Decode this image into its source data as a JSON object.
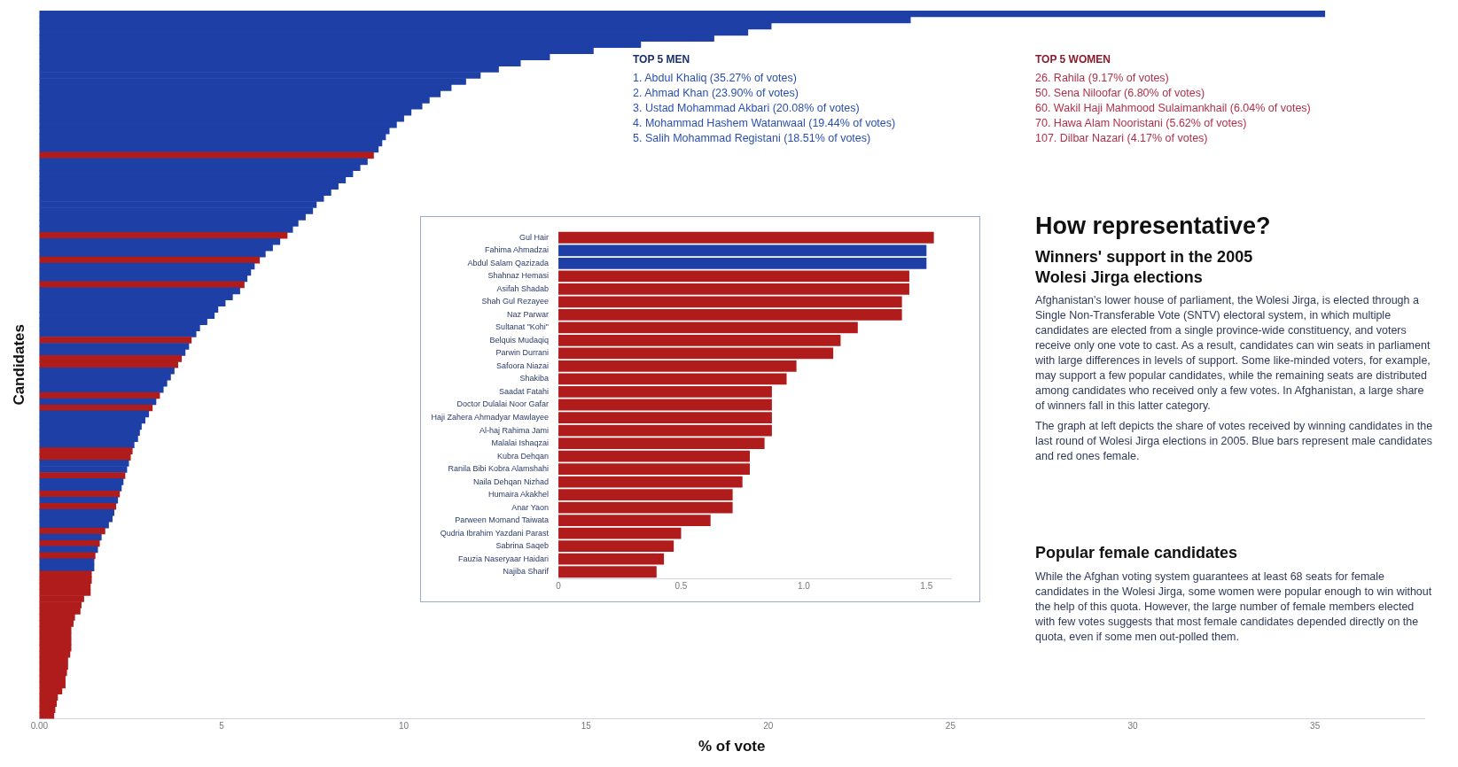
{
  "chart_data": [
    {
      "type": "bar",
      "orientation": "horizontal",
      "xlabel": "% of vote",
      "ylabel": "Candidates",
      "xlim": [
        0,
        38
      ],
      "xticks": [
        {
          "value": 0,
          "label": "0.00"
        },
        5,
        10,
        15,
        20,
        25,
        30,
        35
      ],
      "categories": [
        null,
        null,
        null,
        null,
        null,
        null,
        null,
        null,
        null,
        null,
        null,
        null,
        null,
        null,
        null,
        null,
        null,
        null,
        null,
        null,
        null,
        null,
        null,
        null,
        null,
        null,
        null,
        null,
        null,
        null,
        null,
        null,
        null,
        null,
        null,
        null,
        null,
        null,
        null,
        null,
        null,
        null,
        null,
        null,
        null,
        null,
        null,
        null,
        null,
        null,
        null,
        null,
        null,
        null,
        null,
        null,
        null,
        null,
        null,
        null,
        null,
        null,
        null,
        null,
        null,
        null,
        null,
        null,
        null,
        null,
        null,
        null,
        null,
        null,
        null,
        null,
        null,
        null,
        null,
        null,
        null,
        null,
        null,
        null,
        null,
        null,
        null,
        null,
        null,
        null,
        null,
        null,
        null,
        null,
        null,
        null,
        null,
        null,
        null,
        null,
        null,
        null,
        null,
        null,
        null,
        null,
        null,
        null,
        null,
        null,
        null,
        null,
        null,
        null,
        null
      ],
      "values": [
        35.27,
        23.9,
        20.08,
        19.44,
        18.51,
        16.5,
        15.2,
        14.0,
        13.2,
        12.6,
        12.1,
        11.7,
        11.3,
        11.0,
        10.7,
        10.5,
        10.2,
        10.0,
        9.8,
        9.6,
        9.5,
        9.4,
        9.3,
        9.17,
        9.0,
        8.8,
        8.6,
        8.4,
        8.2,
        8.0,
        7.8,
        7.6,
        7.5,
        7.3,
        7.1,
        6.95,
        6.8,
        6.6,
        6.4,
        6.2,
        6.04,
        5.9,
        5.8,
        5.7,
        5.62,
        5.5,
        5.3,
        5.1,
        4.9,
        4.8,
        4.6,
        4.4,
        4.3,
        4.17,
        4.1,
        4.0,
        3.9,
        3.8,
        3.7,
        3.6,
        3.5,
        3.4,
        3.3,
        3.2,
        3.1,
        3.0,
        2.9,
        2.8,
        2.75,
        2.7,
        2.6,
        2.55,
        2.5,
        2.45,
        2.4,
        2.35,
        2.3,
        2.25,
        2.2,
        2.15,
        2.1,
        2.05,
        2.0,
        1.9,
        1.8,
        1.7,
        1.65,
        1.6,
        1.53,
        1.5,
        1.5,
        1.43,
        1.43,
        1.4,
        1.4,
        1.22,
        1.15,
        1.12,
        0.97,
        0.93,
        0.87,
        0.87,
        0.87,
        0.87,
        0.84,
        0.78,
        0.78,
        0.75,
        0.71,
        0.71,
        0.62,
        0.5,
        0.47,
        0.43,
        0.4
      ],
      "colors": [
        "#1d3fa6",
        "#1d3fa6",
        "#1d3fa6",
        "#1d3fa6",
        "#1d3fa6",
        "#1d3fa6",
        "#1d3fa6",
        "#1d3fa6",
        "#1d3fa6",
        "#1d3fa6",
        "#1d3fa6",
        "#1d3fa6",
        "#1d3fa6",
        "#1d3fa6",
        "#1d3fa6",
        "#1d3fa6",
        "#1d3fa6",
        "#1d3fa6",
        "#1d3fa6",
        "#1d3fa6",
        "#1d3fa6",
        "#1d3fa6",
        "#1d3fa6",
        "#b01c1c",
        "#1d3fa6",
        "#1d3fa6",
        "#1d3fa6",
        "#1d3fa6",
        "#1d3fa6",
        "#1d3fa6",
        "#1d3fa6",
        "#1d3fa6",
        "#1d3fa6",
        "#1d3fa6",
        "#1d3fa6",
        "#1d3fa6",
        "#b01c1c",
        "#1d3fa6",
        "#1d3fa6",
        "#1d3fa6",
        "#b01c1c",
        "#1d3fa6",
        "#1d3fa6",
        "#1d3fa6",
        "#b01c1c",
        "#1d3fa6",
        "#1d3fa6",
        "#1d3fa6",
        "#1d3fa6",
        "#1d3fa6",
        "#1d3fa6",
        "#1d3fa6",
        "#1d3fa6",
        "#b01c1c",
        "#1d3fa6",
        "#1d3fa6",
        "#b01c1c",
        "#b01c1c",
        "#1d3fa6",
        "#1d3fa6",
        "#1d3fa6",
        "#1d3fa6",
        "#b01c1c",
        "#1d3fa6",
        "#b01c1c",
        "#1d3fa6",
        "#1d3fa6",
        "#1d3fa6",
        "#1d3fa6",
        "#1d3fa6",
        "#1d3fa6",
        "#b01c1c",
        "#b01c1c",
        "#1d3fa6",
        "#1d3fa6",
        "#b01c1c",
        "#1d3fa6",
        "#1d3fa6",
        "#b01c1c",
        "#1d3fa6",
        "#b01c1c",
        "#1d3fa6",
        "#1d3fa6",
        "#1d3fa6",
        "#b01c1c",
        "#1d3fa6",
        "#b01c1c",
        "#1d3fa6",
        "#b01c1c",
        "#1d3fa6",
        "#1d3fa6",
        "#b01c1c",
        "#b01c1c",
        "#b01c1c",
        "#b01c1c",
        "#b01c1c",
        "#b01c1c",
        "#b01c1c",
        "#b01c1c",
        "#b01c1c",
        "#b01c1c",
        "#b01c1c",
        "#b01c1c",
        "#b01c1c",
        "#b01c1c",
        "#b01c1c",
        "#b01c1c",
        "#b01c1c",
        "#b01c1c",
        "#b01c1c",
        "#b01c1c",
        "#b01c1c",
        "#b01c1c",
        "#b01c1c",
        "#b01c1c"
      ]
    },
    {
      "type": "bar",
      "orientation": "horizontal",
      "xlim": [
        0,
        1.6
      ],
      "xticks": [
        0,
        0.5,
        {
          "value": 1,
          "label": "1.0"
        },
        1.5
      ],
      "categories": [
        "Gul Hair",
        "Fahima Ahmadzai",
        "Abdul Salam Qazizada",
        "Shahnaz Hemasi",
        "Asifah Shadab",
        "Shah Gul Rezayee",
        "Naz Parwar",
        "Sultanat \"Kohi\"",
        "Belquis Mudaqiq",
        "Parwin Durrani",
        "Safoora Niazai",
        "Shakiba",
        "Saadat Fatahi",
        "Doctor Dulalai Noor Gafar",
        "Haji Zahera Ahmadyar Mawlayee",
        "Al-haj Rahima Jami",
        "Malalai Ishaqzai",
        "Kubra Dehqan",
        "Ranila Bibi Kobra Alamshahi",
        "Naila Dehqan Nizhad",
        "Humaira Akakhel",
        "Anar Yaon",
        "Parween Momand Taiwata",
        "Qudria Ibrahim Yazdani Parast",
        "Sabrina Saqeb",
        "Fauzia Naseryaar Haidari",
        "Najiba Sharif"
      ],
      "values": [
        1.53,
        1.5,
        1.5,
        1.43,
        1.43,
        1.4,
        1.4,
        1.22,
        1.15,
        1.12,
        0.97,
        0.93,
        0.87,
        0.87,
        0.87,
        0.87,
        0.84,
        0.78,
        0.78,
        0.75,
        0.71,
        0.71,
        0.62,
        0.5,
        0.47,
        0.43,
        0.4
      ],
      "colors": [
        "#b01c1c",
        "#1d3fa6",
        "#1d3fa6",
        "#b01c1c",
        "#b01c1c",
        "#b01c1c",
        "#b01c1c",
        "#b01c1c",
        "#b01c1c",
        "#b01c1c",
        "#b01c1c",
        "#b01c1c",
        "#b01c1c",
        "#b01c1c",
        "#b01c1c",
        "#b01c1c",
        "#b01c1c",
        "#b01c1c",
        "#b01c1c",
        "#b01c1c",
        "#b01c1c",
        "#b01c1c",
        "#b01c1c",
        "#b01c1c",
        "#b01c1c",
        "#b01c1c",
        "#b01c1c"
      ]
    },
    {
      "type": "other",
      "title": "TOP 5 MEN",
      "annotations": [
        "1. Abdul Khaliq (35.27% of votes)",
        "2. Ahmad Khan (23.90% of votes)",
        "3. Ustad Mohammad Akbari (20.08% of votes)",
        "4. Mohammad Hashem Watanwaal (19.44% of votes)",
        "5. Salih Mohammad Registani (18.51% of votes)"
      ]
    },
    {
      "type": "other",
      "title": "TOP 5 WOMEN",
      "annotations": [
        "26. Rahila (9.17% of votes)",
        "50. Sena Niloofar (6.80% of votes)",
        "60. Wakil Haji Mahmood Sulaimankhail (6.04% of votes)",
        "70. Hawa Alam Nooristani (5.62% of votes)",
        "107. Dilbar Nazari (4.17% of votes)"
      ]
    },
    {
      "type": "other",
      "title": "How representative?",
      "subtitle": "Winners' support in the 2005 Wolesi Jirga elections",
      "annotations": [
        "Afghanistan's lower house of parliament, the Wolesi Jirga, is elected through a Single Non-Transferable Vote (SNTV) electoral system, in which multiple candidates are elected from a single province-wide constituency, and voters receive only one vote to cast. As a result, candidates can win seats in parliament with large differences in levels of support. Some like-minded voters, for example, may support a few popular candidates, while the remaining seats are distributed among candidates who received only a few votes. In Afghanistan, a large share of winners fall in this latter category.",
        "The graph at left depicts the share of votes received by winning candidates in the last round of Wolesi Jirga elections in 2005. Blue bars represent male candidates and red ones female."
      ]
    },
    {
      "type": "other",
      "title": "Popular female candidates",
      "annotations": [
        "While the Afghan voting system guarantees at least 68 seats for female candidates in the Wolesi Jirga, some women were popular enough to win without the help of this quota. However, the large number of female members elected with few votes suggests that most female candidates depended directly on the quota, even if some men out-polled them."
      ]
    }
  ]
}
